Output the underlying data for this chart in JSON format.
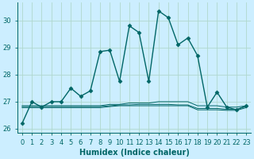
{
  "xlabel": "Humidex (Indice chaleur)",
  "bg_color": "#cceeff",
  "grid_color": "#b0d8cc",
  "line_color": "#006666",
  "x": [
    0,
    1,
    2,
    3,
    4,
    5,
    6,
    7,
    8,
    9,
    10,
    11,
    12,
    13,
    14,
    15,
    16,
    17,
    18,
    19,
    20,
    21,
    22,
    23
  ],
  "y_main": [
    26.2,
    27.0,
    26.8,
    27.0,
    27.0,
    27.5,
    27.2,
    27.4,
    28.85,
    28.9,
    27.75,
    29.8,
    29.55,
    27.75,
    30.35,
    30.1,
    29.1,
    29.35,
    28.7,
    26.8,
    27.35,
    26.8,
    26.7,
    26.85
  ],
  "y_flat1": [
    26.85,
    26.85,
    26.85,
    26.85,
    26.85,
    26.85,
    26.85,
    26.85,
    26.85,
    26.9,
    26.9,
    26.95,
    26.95,
    26.95,
    27.0,
    27.0,
    27.0,
    27.0,
    26.85,
    26.85,
    26.85,
    26.8,
    26.8,
    26.85
  ],
  "y_flat2": [
    26.82,
    26.82,
    26.82,
    26.82,
    26.82,
    26.82,
    26.82,
    26.82,
    26.82,
    26.85,
    26.88,
    26.88,
    26.9,
    26.9,
    26.9,
    26.9,
    26.88,
    26.88,
    26.75,
    26.75,
    26.75,
    26.72,
    26.72,
    26.82
  ],
  "y_flat3": [
    26.78,
    26.78,
    26.78,
    26.78,
    26.78,
    26.78,
    26.78,
    26.78,
    26.78,
    26.82,
    26.85,
    26.85,
    26.85,
    26.85,
    26.85,
    26.85,
    26.85,
    26.85,
    26.7,
    26.7,
    26.7,
    26.68,
    26.68,
    26.78
  ],
  "ylim": [
    25.85,
    30.65
  ],
  "xlim": [
    -0.5,
    23.5
  ],
  "yticks": [
    26,
    27,
    28,
    29,
    30
  ],
  "xticks": [
    0,
    1,
    2,
    3,
    4,
    5,
    6,
    7,
    8,
    9,
    10,
    11,
    12,
    13,
    14,
    15,
    16,
    17,
    18,
    19,
    20,
    21,
    22,
    23
  ],
  "markersize": 2.5,
  "linewidth": 1.0,
  "axis_fontsize": 7,
  "tick_fontsize": 6
}
